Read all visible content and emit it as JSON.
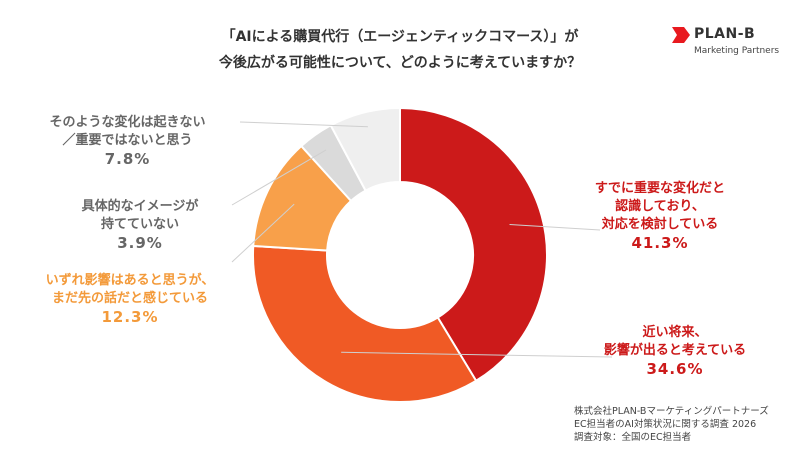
{
  "title": {
    "line1": "「AIによる購買代行（エージェンティックコマース）」が",
    "line2": "今後広がる可能性について、どのように考えていますか？"
  },
  "brand": {
    "name": "PLAN-B",
    "sub": "Marketing Partners",
    "color": "#e8191f"
  },
  "chart_data": {
    "type": "pie",
    "donut": true,
    "start": "12 o'clock, clockwise",
    "slices": [
      {
        "label_lines": [
          "すでに重要な変化だと",
          "認識しており、",
          "対応を検討している"
        ],
        "value": 41.3,
        "value_text": "41.3%",
        "color": "#cc1a1a",
        "label_color": "#cc1a1a",
        "side": "right"
      },
      {
        "label_lines": [
          "近い将来、",
          "影響が出ると考えている"
        ],
        "value": 34.6,
        "value_text": "34.6%",
        "color": "#f05a25",
        "label_color": "#cc1a1a",
        "side": "right"
      },
      {
        "label_lines": [
          "いずれ影響はあると思うが、",
          "まだ先の話だと感じている"
        ],
        "value": 12.3,
        "value_text": "12.3%",
        "color": "#f8a04a",
        "label_color": "#f39a3a",
        "side": "left"
      },
      {
        "label_lines": [
          "具体的なイメージが",
          "持てていない"
        ],
        "value": 3.9,
        "value_text": "3.9%",
        "color": "#dadada",
        "label_color": "#666666",
        "side": "left"
      },
      {
        "label_lines": [
          "そのような変化は起きない",
          "／重要ではないと思う"
        ],
        "value": 7.8,
        "value_text": "7.8%",
        "color": "#efefef",
        "label_color": "#666666",
        "side": "left"
      }
    ]
  },
  "source": {
    "line1": "株式会社PLAN-Bマーケティングパートナーズ",
    "line2": "EC担当者のAI対策状況に関する調査 2026",
    "line3": "調査対象：全国のEC担当者"
  }
}
